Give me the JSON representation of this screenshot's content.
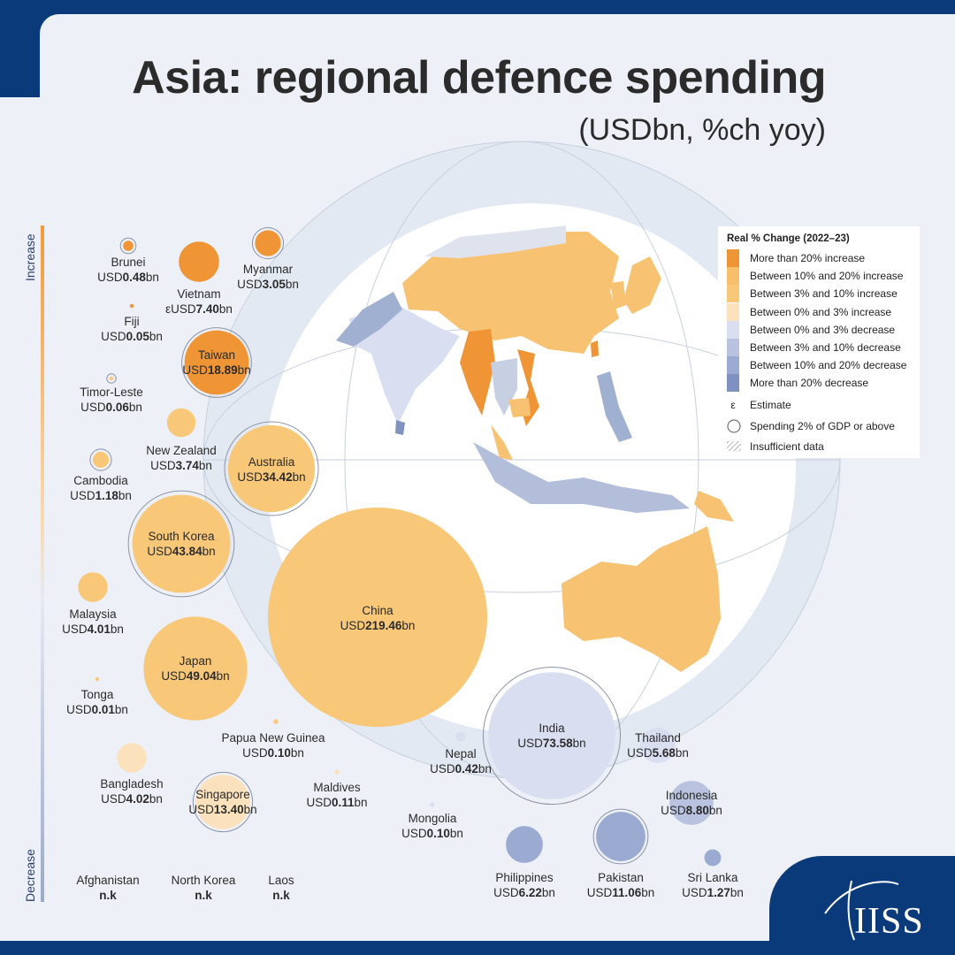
{
  "brand": {
    "logo_text": "IISS"
  },
  "chart_data": {
    "type": "bubble",
    "title": "Asia: regional defence spending",
    "subtitle": "(USDbn, %ch yoy)",
    "axis_top": "Increase",
    "axis_bottom": "Decrease",
    "colors": {
      "gt20inc": "#ef9535",
      "10to20inc": "#f8bf6a",
      "3to10inc": "#f8c777",
      "0to3inc": "#fbe2bd",
      "0to3dec": "#d9def0",
      "3to10dec": "#b9c3df",
      "10to20dec": "#9aaad0",
      "gt20dec": "#7f92bf",
      "ring": "#8a93a6"
    },
    "legend": {
      "title": "Real % Change (2022–23)",
      "items": [
        {
          "label": "More than 20% increase",
          "color": "#ef9535"
        },
        {
          "label": "Between 10% and 20% increase",
          "color": "#f8bf6a"
        },
        {
          "label": "Between 3% and 10% increase",
          "color": "#f8c777"
        },
        {
          "label": "Between 0% and 3% increase",
          "color": "#fbe2bd"
        },
        {
          "label": "Between 0% and 3% decrease",
          "color": "#d9def0"
        },
        {
          "label": "Between 3% and 10% decrease",
          "color": "#b9c3df"
        },
        {
          "label": "Between 10% and 20% decrease",
          "color": "#9aaad0"
        },
        {
          "label": "More than 20% decrease",
          "color": "#7f92bf"
        }
      ],
      "symbols": [
        {
          "kind": "estimate",
          "glyph": "ε",
          "label": "Estimate"
        },
        {
          "kind": "ring",
          "label": "Spending 2% of GDP or above"
        },
        {
          "kind": "hatch",
          "label": "Insufficient data"
        }
      ]
    },
    "countries": [
      {
        "name": "Brunei",
        "value": 0.48,
        "text": "0.48",
        "category": "gt20inc",
        "ring": true,
        "estimate": false
      },
      {
        "name": "Myanmar",
        "value": 3.05,
        "text": "3.05",
        "category": "gt20inc",
        "ring": true,
        "estimate": false
      },
      {
        "name": "Vietnam",
        "value": 7.4,
        "text": "7.40",
        "category": "gt20inc",
        "ring": false,
        "estimate": true
      },
      {
        "name": "Fiji",
        "value": 0.05,
        "text": "0.05",
        "category": "gt20inc",
        "ring": false,
        "estimate": false
      },
      {
        "name": "Taiwan",
        "value": 18.89,
        "text": "18.89",
        "category": "gt20inc",
        "ring": true,
        "estimate": false
      },
      {
        "name": "Timor-Leste",
        "value": 0.06,
        "text": "0.06",
        "category": "3to10inc",
        "ring": true,
        "estimate": false
      },
      {
        "name": "New Zealand",
        "value": 3.74,
        "text": "3.74",
        "category": "3to10inc",
        "ring": false,
        "estimate": false
      },
      {
        "name": "Cambodia",
        "value": 1.18,
        "text": "1.18",
        "category": "3to10inc",
        "ring": true,
        "estimate": false
      },
      {
        "name": "Australia",
        "value": 34.42,
        "text": "34.42",
        "category": "3to10inc",
        "ring": true,
        "estimate": false
      },
      {
        "name": "South Korea",
        "value": 43.84,
        "text": "43.84",
        "category": "3to10inc",
        "ring": true,
        "estimate": false
      },
      {
        "name": "Malaysia",
        "value": 4.01,
        "text": "4.01",
        "category": "3to10inc",
        "ring": false,
        "estimate": false
      },
      {
        "name": "China",
        "value": 219.46,
        "text": "219.46",
        "category": "3to10inc",
        "ring": false,
        "estimate": false
      },
      {
        "name": "Japan",
        "value": 49.04,
        "text": "49.04",
        "category": "3to10inc",
        "ring": false,
        "estimate": false
      },
      {
        "name": "Tonga",
        "value": 0.01,
        "text": "0.01",
        "category": "3to10inc",
        "ring": false,
        "estimate": false
      },
      {
        "name": "Papua New Guinea",
        "value": 0.1,
        "text": "0.10",
        "category": "3to10inc",
        "ring": false,
        "estimate": false
      },
      {
        "name": "Bangladesh",
        "value": 4.02,
        "text": "4.02",
        "category": "0to3inc",
        "ring": false,
        "estimate": false
      },
      {
        "name": "Singapore",
        "value": 13.4,
        "text": "13.40",
        "category": "0to3inc",
        "ring": true,
        "estimate": false
      },
      {
        "name": "Maldives",
        "value": 0.11,
        "text": "0.11",
        "category": "0to3inc",
        "ring": false,
        "estimate": false
      },
      {
        "name": "India",
        "value": 73.58,
        "text": "73.58",
        "category": "0to3dec",
        "ring": true,
        "estimate": false
      },
      {
        "name": "Nepal",
        "value": 0.42,
        "text": "0.42",
        "category": "0to3dec",
        "ring": false,
        "estimate": false
      },
      {
        "name": "Thailand",
        "value": 5.68,
        "text": "5.68",
        "category": "0to3dec",
        "ring": false,
        "estimate": false
      },
      {
        "name": "Mongolia",
        "value": 0.1,
        "text": "0.10",
        "category": "0to3dec",
        "ring": false,
        "estimate": false
      },
      {
        "name": "Indonesia",
        "value": 8.8,
        "text": "8.80",
        "category": "3to10dec",
        "ring": false,
        "estimate": false
      },
      {
        "name": "Philippines",
        "value": 6.22,
        "text": "6.22",
        "category": "10to20dec",
        "ring": false,
        "estimate": false
      },
      {
        "name": "Pakistan",
        "value": 11.06,
        "text": "11.06",
        "category": "10to20dec",
        "ring": true,
        "estimate": false
      },
      {
        "name": "Sri Lanka",
        "value": 1.27,
        "text": "1.27",
        "category": "10to20dec",
        "ring": false,
        "estimate": false
      }
    ],
    "no_data": [
      {
        "name": "Afghanistan",
        "text": "n.k"
      },
      {
        "name": "North Korea",
        "text": "n.k"
      },
      {
        "name": "Laos",
        "text": "n.k"
      }
    ],
    "currency_prefix": "USD",
    "unit_suffix": "bn",
    "estimate_glyph": "ε"
  }
}
